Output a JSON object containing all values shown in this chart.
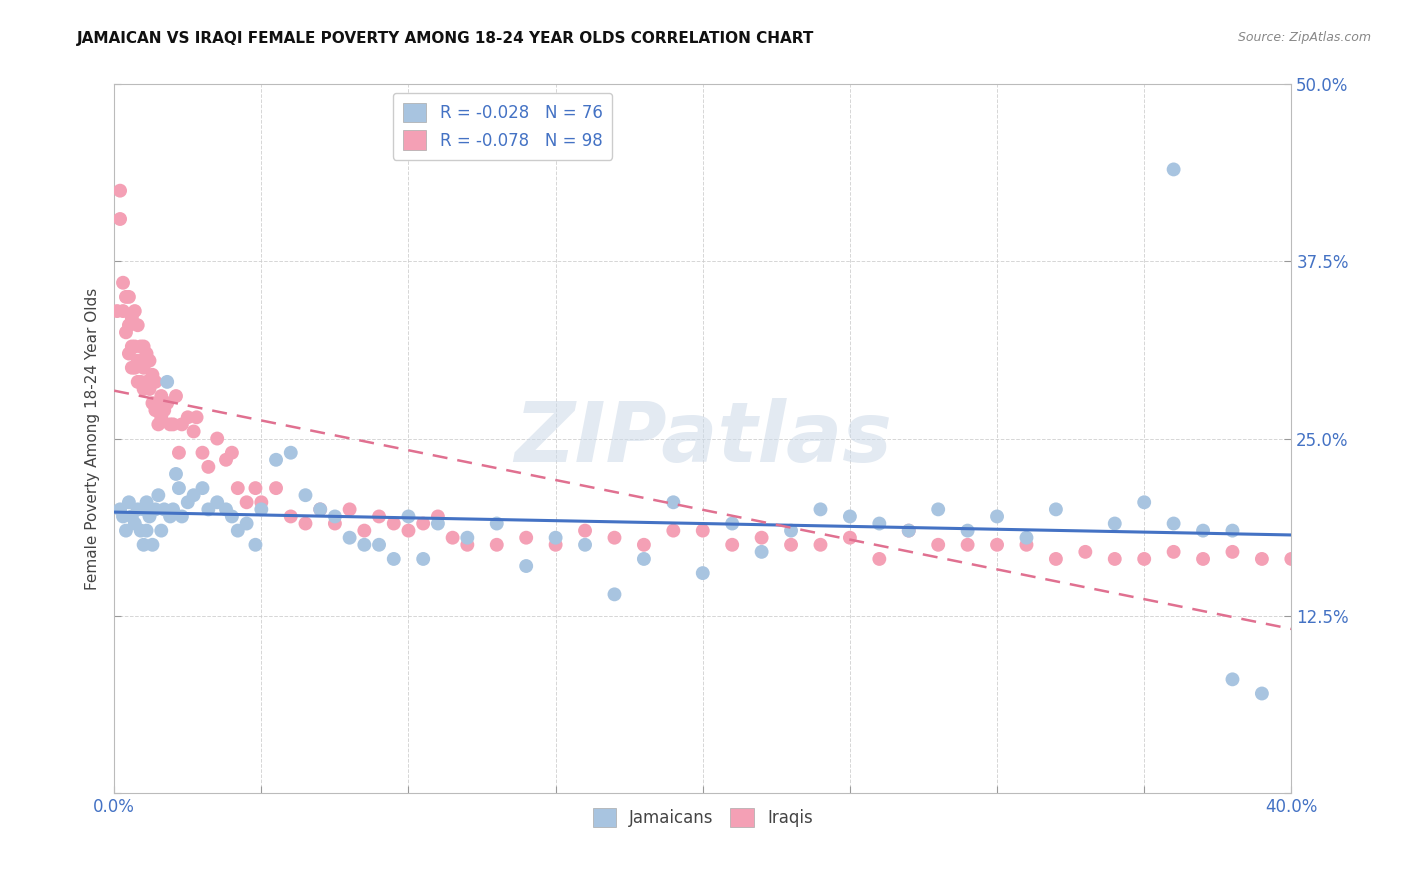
{
  "title": "JAMAICAN VS IRAQI FEMALE POVERTY AMONG 18-24 YEAR OLDS CORRELATION CHART",
  "source": "Source: ZipAtlas.com",
  "ylabel": "Female Poverty Among 18-24 Year Olds",
  "xlabel": "",
  "xlim": [
    0.0,
    0.4
  ],
  "ylim": [
    0.0,
    0.5
  ],
  "xtick_positions": [
    0.0,
    0.05,
    0.1,
    0.15,
    0.2,
    0.25,
    0.3,
    0.35,
    0.4
  ],
  "ytick_positions": [
    0.0,
    0.125,
    0.25,
    0.375,
    0.5
  ],
  "xtick_labels": [
    "0.0%",
    "",
    "",
    "",
    "",
    "",
    "",
    "",
    "40.0%"
  ],
  "ytick_labels": [
    "",
    "12.5%",
    "25.0%",
    "37.5%",
    "50.0%"
  ],
  "jamaicans_R": "-0.028",
  "jamaicans_N": "76",
  "iraqis_R": "-0.078",
  "iraqis_N": "98",
  "jamaicans_color": "#a8c4e0",
  "iraqis_color": "#f4a0b5",
  "jamaicans_line_color": "#4472C4",
  "iraqis_line_color": "#e07090",
  "background_color": "#ffffff",
  "grid_color": "#cccccc",
  "watermark": "ZIPatlas",
  "jamaicans_x": [
    0.002,
    0.003,
    0.004,
    0.005,
    0.006,
    0.007,
    0.008,
    0.009,
    0.01,
    0.01,
    0.011,
    0.011,
    0.012,
    0.013,
    0.014,
    0.015,
    0.016,
    0.017,
    0.018,
    0.019,
    0.02,
    0.021,
    0.022,
    0.023,
    0.025,
    0.027,
    0.03,
    0.032,
    0.035,
    0.038,
    0.04,
    0.042,
    0.045,
    0.048,
    0.05,
    0.055,
    0.06,
    0.065,
    0.07,
    0.075,
    0.08,
    0.085,
    0.09,
    0.095,
    0.1,
    0.105,
    0.11,
    0.12,
    0.13,
    0.14,
    0.15,
    0.16,
    0.17,
    0.18,
    0.19,
    0.2,
    0.21,
    0.22,
    0.23,
    0.24,
    0.25,
    0.26,
    0.27,
    0.28,
    0.29,
    0.3,
    0.31,
    0.32,
    0.34,
    0.35,
    0.36,
    0.37,
    0.38,
    0.39,
    0.36,
    0.38
  ],
  "jamaicans_y": [
    0.2,
    0.195,
    0.185,
    0.205,
    0.195,
    0.19,
    0.2,
    0.185,
    0.2,
    0.175,
    0.205,
    0.185,
    0.195,
    0.175,
    0.2,
    0.21,
    0.185,
    0.2,
    0.29,
    0.195,
    0.2,
    0.225,
    0.215,
    0.195,
    0.205,
    0.21,
    0.215,
    0.2,
    0.205,
    0.2,
    0.195,
    0.185,
    0.19,
    0.175,
    0.2,
    0.235,
    0.24,
    0.21,
    0.2,
    0.195,
    0.18,
    0.175,
    0.175,
    0.165,
    0.195,
    0.165,
    0.19,
    0.18,
    0.19,
    0.16,
    0.18,
    0.175,
    0.14,
    0.165,
    0.205,
    0.155,
    0.19,
    0.17,
    0.185,
    0.2,
    0.195,
    0.19,
    0.185,
    0.2,
    0.185,
    0.195,
    0.18,
    0.2,
    0.19,
    0.205,
    0.19,
    0.185,
    0.08,
    0.07,
    0.44,
    0.185
  ],
  "iraqis_x": [
    0.001,
    0.002,
    0.002,
    0.003,
    0.003,
    0.004,
    0.004,
    0.005,
    0.005,
    0.005,
    0.006,
    0.006,
    0.006,
    0.007,
    0.007,
    0.007,
    0.008,
    0.008,
    0.008,
    0.009,
    0.009,
    0.009,
    0.01,
    0.01,
    0.01,
    0.011,
    0.011,
    0.012,
    0.012,
    0.013,
    0.013,
    0.014,
    0.014,
    0.015,
    0.015,
    0.016,
    0.016,
    0.017,
    0.018,
    0.019,
    0.02,
    0.021,
    0.022,
    0.023,
    0.025,
    0.027,
    0.028,
    0.03,
    0.032,
    0.035,
    0.038,
    0.04,
    0.042,
    0.045,
    0.048,
    0.05,
    0.055,
    0.06,
    0.065,
    0.07,
    0.075,
    0.08,
    0.085,
    0.09,
    0.095,
    0.1,
    0.105,
    0.11,
    0.115,
    0.12,
    0.13,
    0.14,
    0.15,
    0.16,
    0.17,
    0.18,
    0.19,
    0.2,
    0.21,
    0.22,
    0.23,
    0.24,
    0.25,
    0.26,
    0.27,
    0.28,
    0.29,
    0.3,
    0.31,
    0.32,
    0.33,
    0.34,
    0.35,
    0.36,
    0.37,
    0.38,
    0.39,
    0.4
  ],
  "iraqis_y": [
    0.34,
    0.425,
    0.405,
    0.36,
    0.34,
    0.35,
    0.325,
    0.35,
    0.33,
    0.31,
    0.335,
    0.315,
    0.3,
    0.34,
    0.315,
    0.3,
    0.33,
    0.305,
    0.29,
    0.305,
    0.315,
    0.29,
    0.315,
    0.3,
    0.285,
    0.31,
    0.29,
    0.305,
    0.285,
    0.295,
    0.275,
    0.27,
    0.29,
    0.26,
    0.275,
    0.28,
    0.265,
    0.27,
    0.275,
    0.26,
    0.26,
    0.28,
    0.24,
    0.26,
    0.265,
    0.255,
    0.265,
    0.24,
    0.23,
    0.25,
    0.235,
    0.24,
    0.215,
    0.205,
    0.215,
    0.205,
    0.215,
    0.195,
    0.19,
    0.2,
    0.19,
    0.2,
    0.185,
    0.195,
    0.19,
    0.185,
    0.19,
    0.195,
    0.18,
    0.175,
    0.175,
    0.18,
    0.175,
    0.185,
    0.18,
    0.175,
    0.185,
    0.185,
    0.175,
    0.18,
    0.175,
    0.175,
    0.18,
    0.165,
    0.185,
    0.175,
    0.175,
    0.175,
    0.175,
    0.165,
    0.17,
    0.165,
    0.165,
    0.17,
    0.165,
    0.17,
    0.165,
    0.165
  ]
}
